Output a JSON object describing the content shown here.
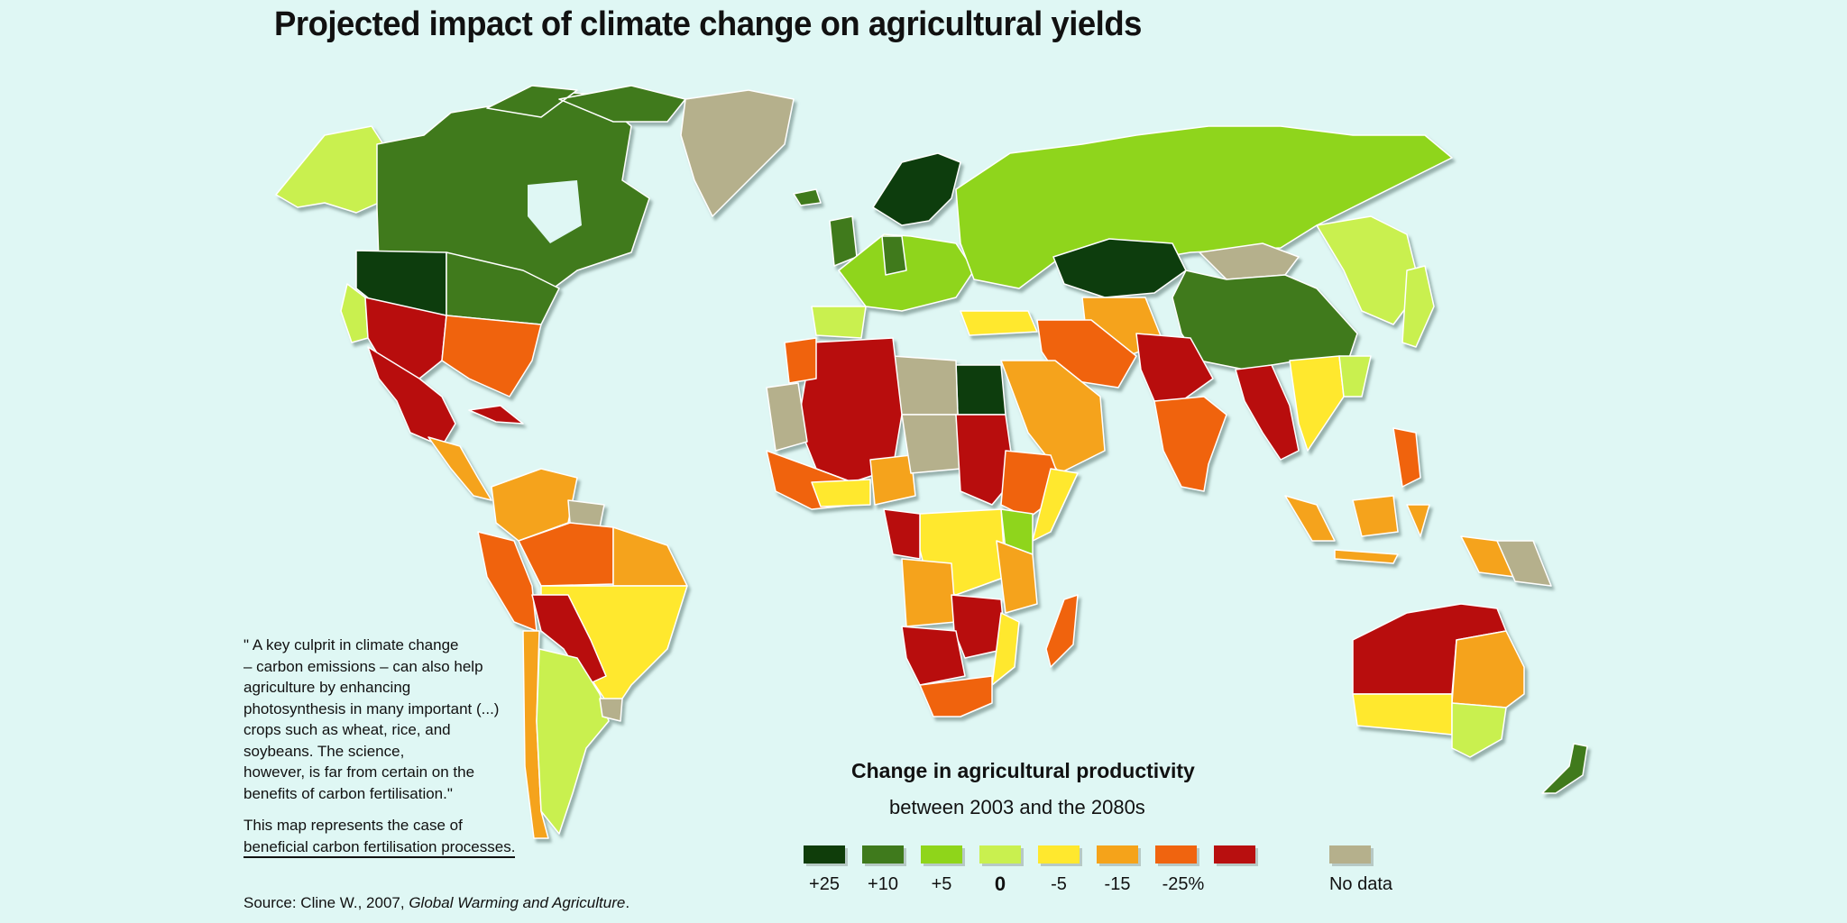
{
  "title": "Projected impact of climate change on agricultural yields",
  "legend": {
    "title": "Change in agricultural productivity",
    "subtitle": "between 2003 and the 2080s",
    "classes": [
      {
        "label": "+25",
        "color": "#0f3d0a"
      },
      {
        "label": "+10",
        "color": "#3f7a1c"
      },
      {
        "label": "+5",
        "color": "#8fd51a"
      },
      {
        "label": "0",
        "color": "#c9f04f"
      },
      {
        "label": "-5",
        "color": "#ffe82e"
      },
      {
        "label": "-15",
        "color": "#f5a31a"
      },
      {
        "label": "-25%",
        "color": "#f0640f"
      },
      {
        "label": "",
        "color": "#b80f0f"
      }
    ],
    "nodata": {
      "label": "No data",
      "color": "#b5b08c"
    }
  },
  "quote": {
    "text": "\" A key culprit in climate change\n– carbon emissions – can also help\nagriculture by enhancing\nphotosynthesis in many important (...)\ncrops such as wheat, rice, and\nsoybeans. The science,\nhowever, is far from certain on the\nbenefits of carbon fertilisation.\"",
    "note_line1": "This map represents the case of",
    "note_line2": "beneficial carbon fertilisation processes."
  },
  "source": {
    "prefix": "Source: Cline W., 2007, ",
    "work": "Global Warming and Agriculture",
    "suffix": "."
  }
}
